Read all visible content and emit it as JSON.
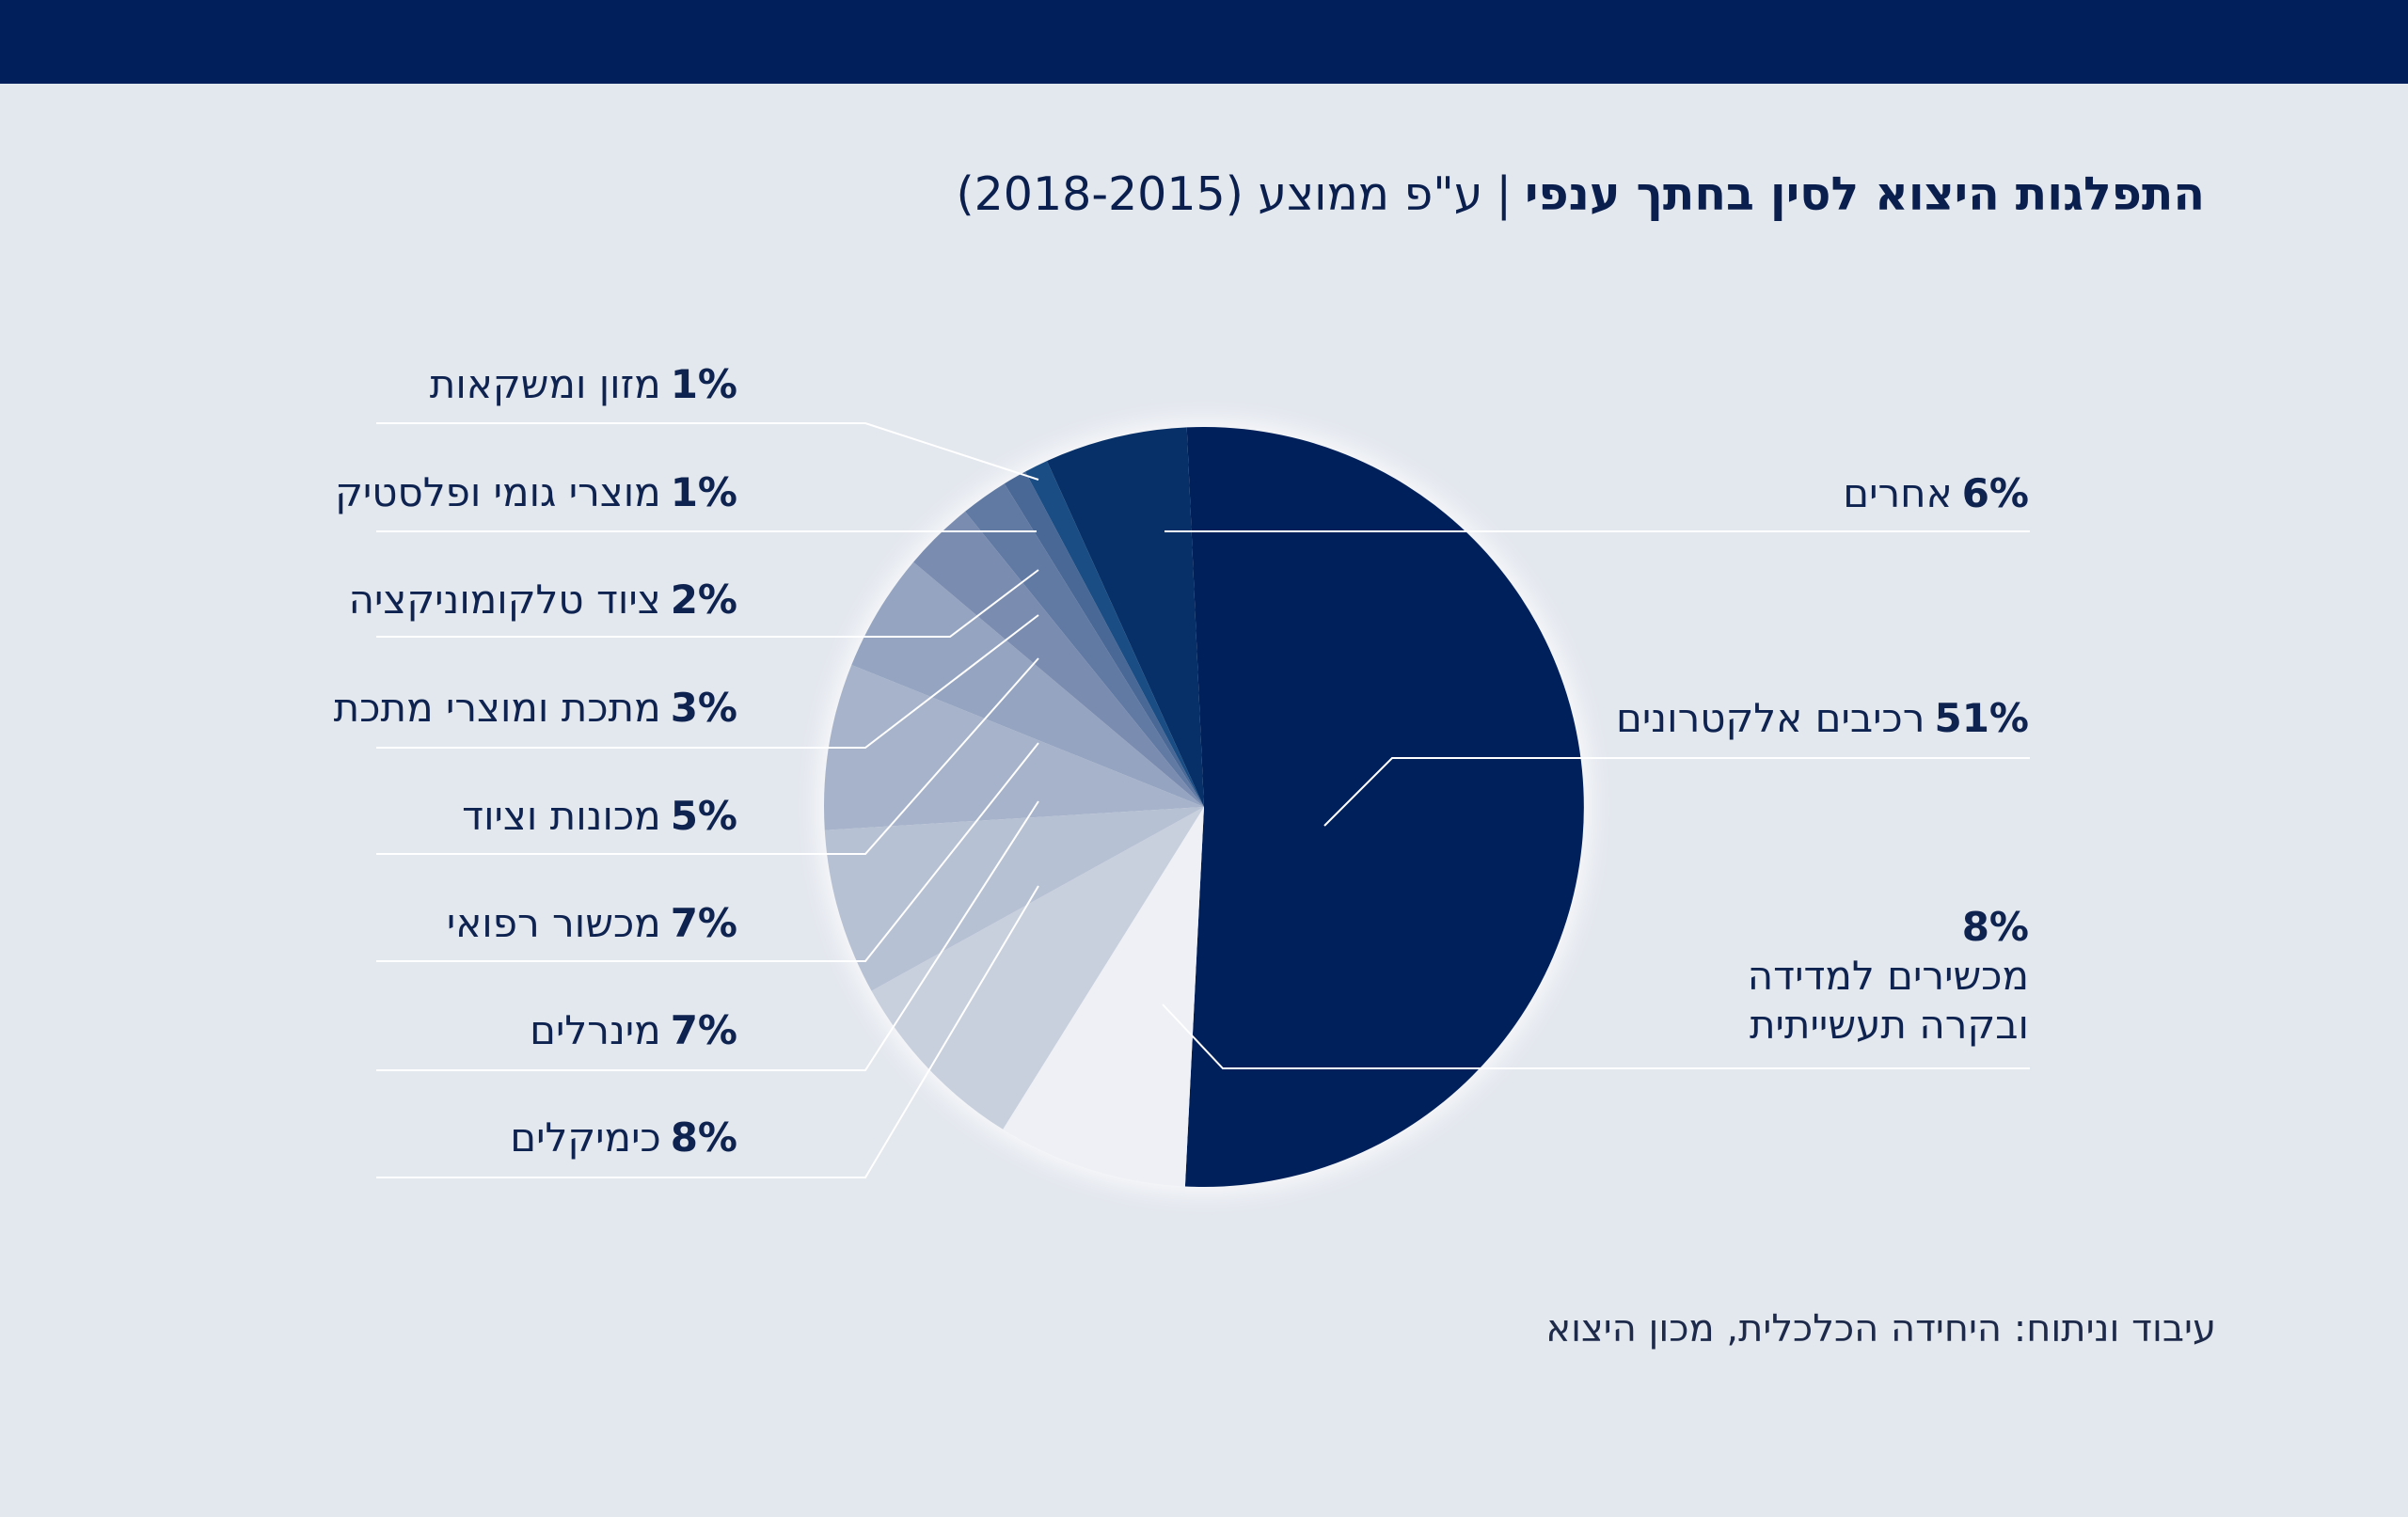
{
  "header": {
    "title_bold": "התפלגות היצוא לסין בחתך ענפי",
    "title_separator": "|",
    "title_rest": "ע\"פ ממוצע (2018-2015)"
  },
  "chart_data": {
    "type": "pie",
    "title": "התפלגות היצוא לסין בחתך ענפי | ע\"פ ממוצע (2018-2015)",
    "unit": "%",
    "slices": [
      {
        "label": "רכיבים אלקטרונים",
        "value": 51,
        "display": "51%",
        "color": "#00205b"
      },
      {
        "label": "מכשירים למדידה ובקרה תעשייתית",
        "value": 8,
        "display": "8%",
        "color": "#eef0f5"
      },
      {
        "label": "כימיקלים",
        "value": 8,
        "display": "8%",
        "color": "#c8cfdd"
      },
      {
        "label": "מינרלים",
        "value": 7,
        "display": "7%",
        "color": "#b7c1d4"
      },
      {
        "label": "מכשור רפואי",
        "value": 7,
        "display": "7%",
        "color": "#a6b3ca"
      },
      {
        "label": "מכונות וציוד",
        "value": 5,
        "display": "5%",
        "color": "#95a4c1"
      },
      {
        "label": "מתכת ומוצרי מתכת",
        "value": 3,
        "display": "3%",
        "color": "#7a8cb0"
      },
      {
        "label": "ציוד טלקומוניקציה",
        "value": 2,
        "display": "2%",
        "color": "#617aa4"
      },
      {
        "label": "מוצרי גומי ופלסטיק",
        "value": 1,
        "display": "1%",
        "color": "#4a6896"
      },
      {
        "label": "מזון ומשקאות",
        "value": 1,
        "display": "1%",
        "color": "#1b4d85"
      },
      {
        "label": "אחרים",
        "value": 6,
        "display": "6%",
        "color": "#073068"
      }
    ]
  },
  "labels": {
    "electronics": {
      "pct": "51%",
      "text": "רכיבים אלקטרונים"
    },
    "measurement": {
      "pct": "8%",
      "line1": "מכשירים למדידה",
      "line2": "ובקרה תעשייתית"
    },
    "others": {
      "pct": "6%",
      "text": "אחרים"
    },
    "food": {
      "pct": "1%",
      "text": "מזון ומשקאות"
    },
    "rubber": {
      "pct": "1%",
      "text": "מוצרי גומי ופלסטיק"
    },
    "telecom": {
      "pct": "2%",
      "text": "ציוד טלקומוניקציה"
    },
    "metal": {
      "pct": "3%",
      "text": "מתכת ומוצרי מתכת"
    },
    "machinery": {
      "pct": "5%",
      "text": "מכונות וציוד"
    },
    "medical": {
      "pct": "7%",
      "text": "מכשור רפואי"
    },
    "minerals": {
      "pct": "7%",
      "text": "מינרלים"
    },
    "chemicals": {
      "pct": "8%",
      "text": "כימיקלים"
    }
  },
  "footer": {
    "credit": "עיבוד וניתוח: היחידה הכלכלית, מכון היצוא"
  }
}
